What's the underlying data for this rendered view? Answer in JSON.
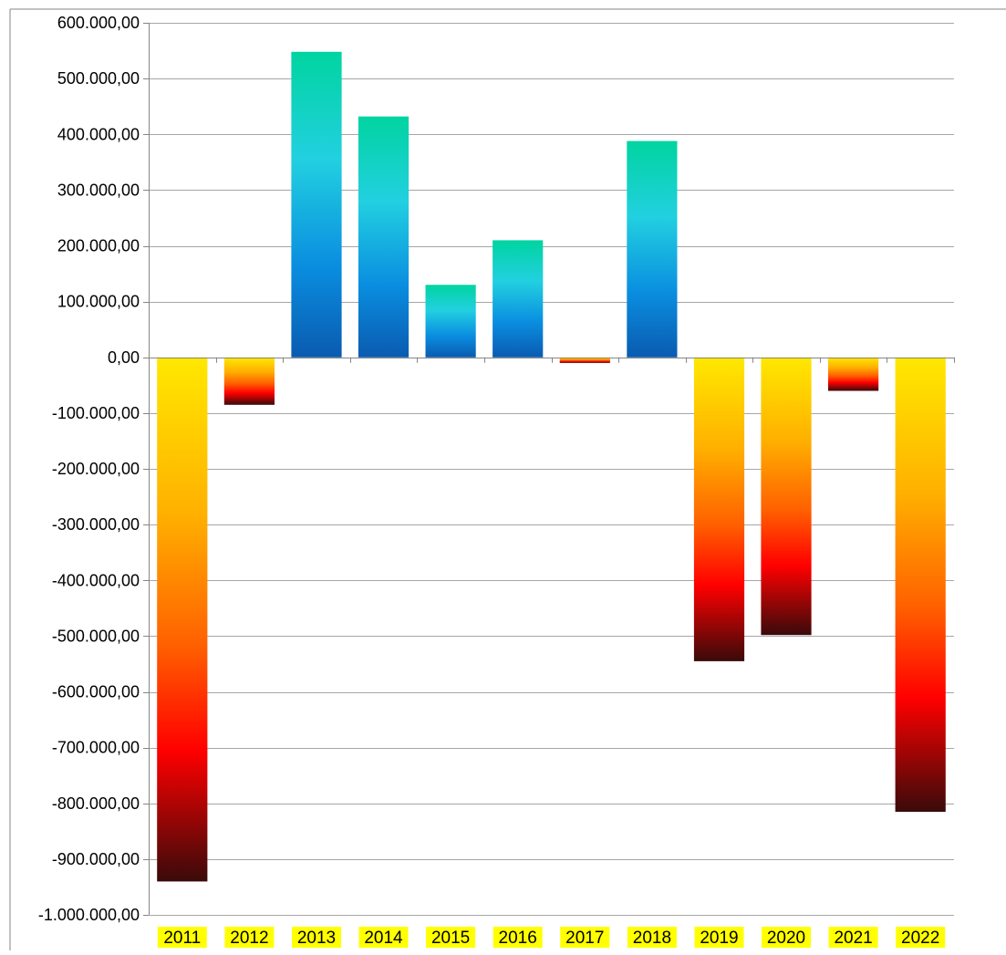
{
  "chart_data": {
    "type": "bar",
    "title": "",
    "xlabel": "",
    "ylabel": "",
    "categories": [
      "2011",
      "2012",
      "2013",
      "2014",
      "2015",
      "2016",
      "2017",
      "2018",
      "2019",
      "2020",
      "2021",
      "2022"
    ],
    "values": [
      -940000,
      -85000,
      548000,
      432000,
      130000,
      210000,
      -10000,
      388000,
      -545000,
      -498000,
      -60000,
      -815000
    ],
    "ylim": [
      -1000000,
      600000
    ],
    "yticks": [
      600000,
      500000,
      400000,
      300000,
      200000,
      100000,
      0,
      -100000,
      -200000,
      -300000,
      -400000,
      -500000,
      -600000,
      -700000,
      -800000,
      -900000,
      -1000000
    ],
    "ytick_labels": [
      "600.000,00",
      "500.000,00",
      "400.000,00",
      "300.000,00",
      "200.000,00",
      "100.000,00",
      "0,00",
      "-100.000,00",
      "-200.000,00",
      "-300.000,00",
      "-400.000,00",
      "-500.000,00",
      "-600.000,00",
      "-700.000,00",
      "-800.000,00",
      "-900.000,00",
      "-1.000.000,00"
    ],
    "grid": true,
    "legend": "none",
    "colors": {
      "positive_top": "#00d4a0",
      "positive_mid": "#22d0e0",
      "positive_low": "#0a8ee0",
      "positive_bottom": "#0a5bb0",
      "negative_top": "#ffe800",
      "negative_upper": "#ffb000",
      "negative_mid": "#ff6000",
      "negative_red": "#ff0000",
      "negative_bottom": "#3a0a0a",
      "category_highlight": "#ffff00",
      "gridline": "#a6a6a6",
      "axis": "#868686",
      "text": "#000000"
    }
  }
}
